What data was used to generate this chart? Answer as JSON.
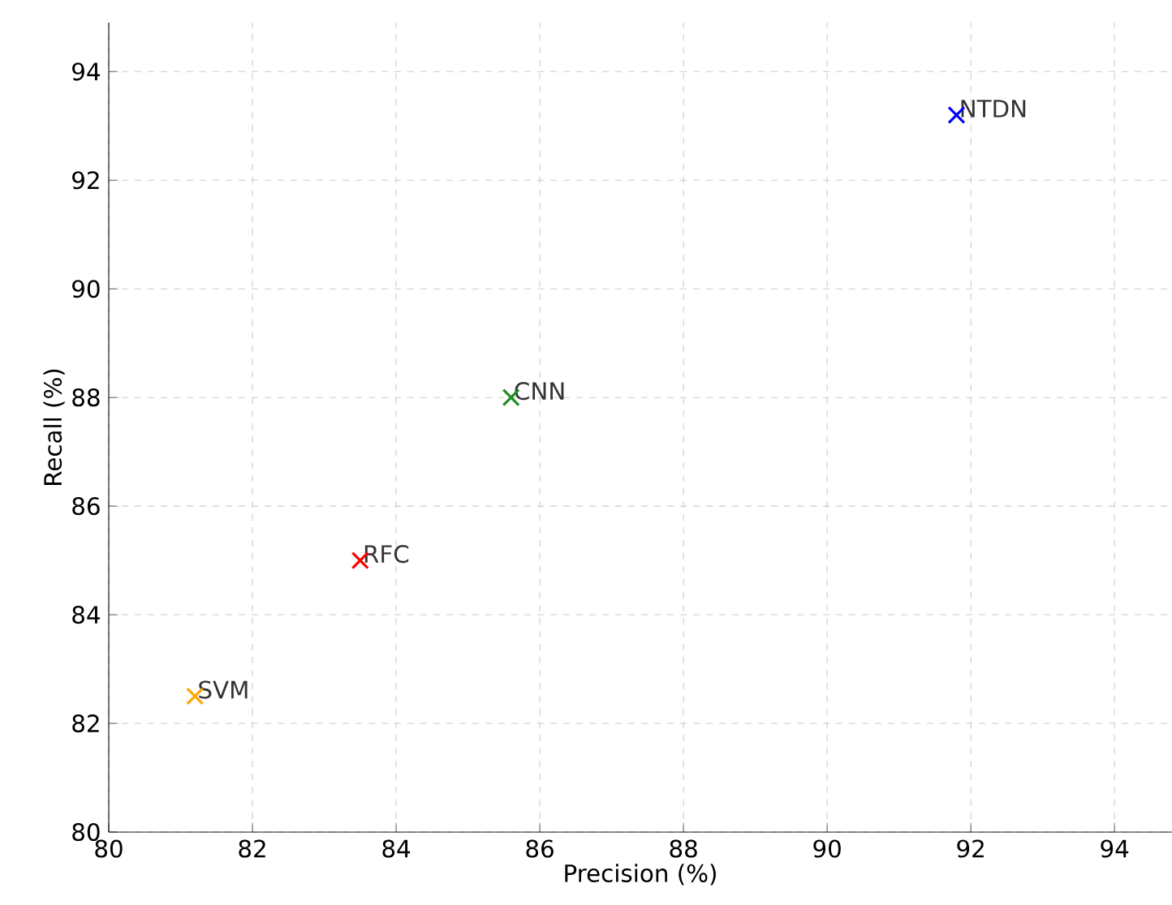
{
  "chart_data": {
    "type": "scatter",
    "xlabel": "Precision (%)",
    "ylabel": "Recall (%)",
    "xlim": [
      80,
      94.8
    ],
    "ylim": [
      80,
      94.9
    ],
    "xticks": [
      80,
      82,
      84,
      86,
      88,
      90,
      92,
      94
    ],
    "yticks": [
      80,
      82,
      84,
      86,
      88,
      90,
      92,
      94
    ],
    "grid": true,
    "marker": "cross",
    "series": [
      {
        "name": "SVM",
        "color": "#ffa500",
        "x": [
          81.2
        ],
        "values": [
          82.5
        ]
      },
      {
        "name": "RFC",
        "color": "#ff0000",
        "x": [
          83.5
        ],
        "values": [
          85.0
        ]
      },
      {
        "name": "CNN",
        "color": "#228b22",
        "x": [
          85.6
        ],
        "values": [
          88.0
        ]
      },
      {
        "name": "NTDN",
        "color": "#0000ff",
        "x": [
          91.8
        ],
        "values": [
          93.2
        ]
      }
    ]
  }
}
